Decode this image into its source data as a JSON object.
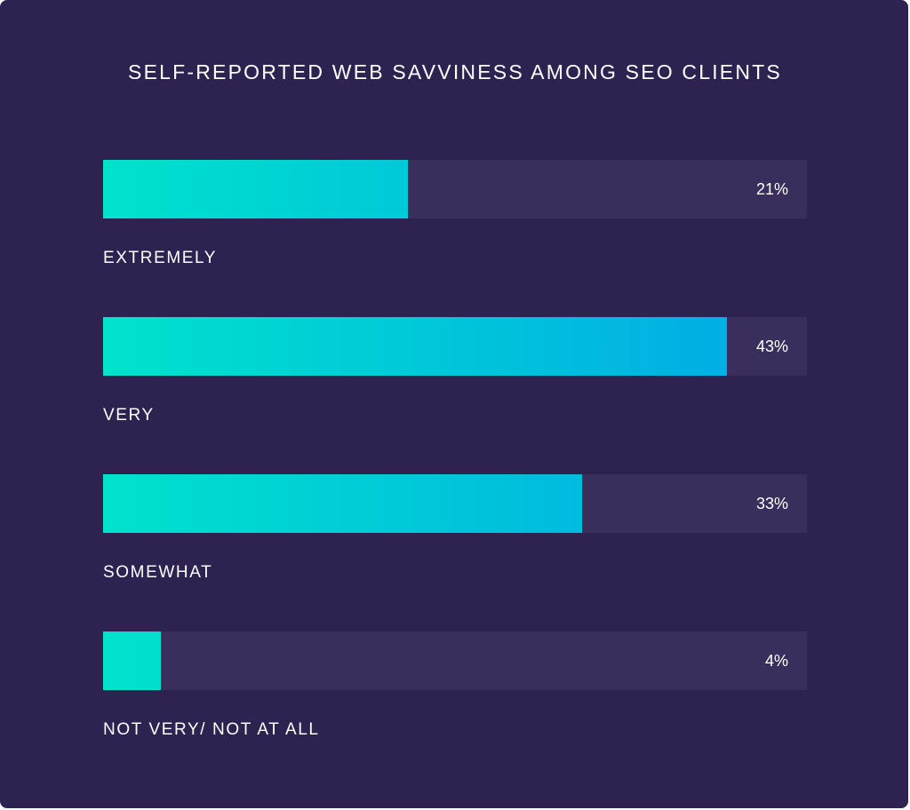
{
  "chart_data": {
    "type": "bar",
    "orientation": "horizontal",
    "title": "SELF-REPORTED WEB SAVVINESS AMONG SEO CLIENTS",
    "categories": [
      "EXTREMELY",
      "VERY",
      "SOMEWHAT",
      "NOT VERY/ NOT AT ALL"
    ],
    "values": [
      21,
      43,
      33,
      4
    ],
    "value_labels": [
      "21%",
      "43%",
      "33%",
      "4%"
    ],
    "xlim": [
      0,
      48.5
    ],
    "grid": false,
    "legend": "none"
  },
  "colors": {
    "background": "#2e2350",
    "track": "#3a2e5c",
    "fill_start": "#00e2cc",
    "fill_end": "#00a8e8",
    "text": "#ffffff"
  }
}
